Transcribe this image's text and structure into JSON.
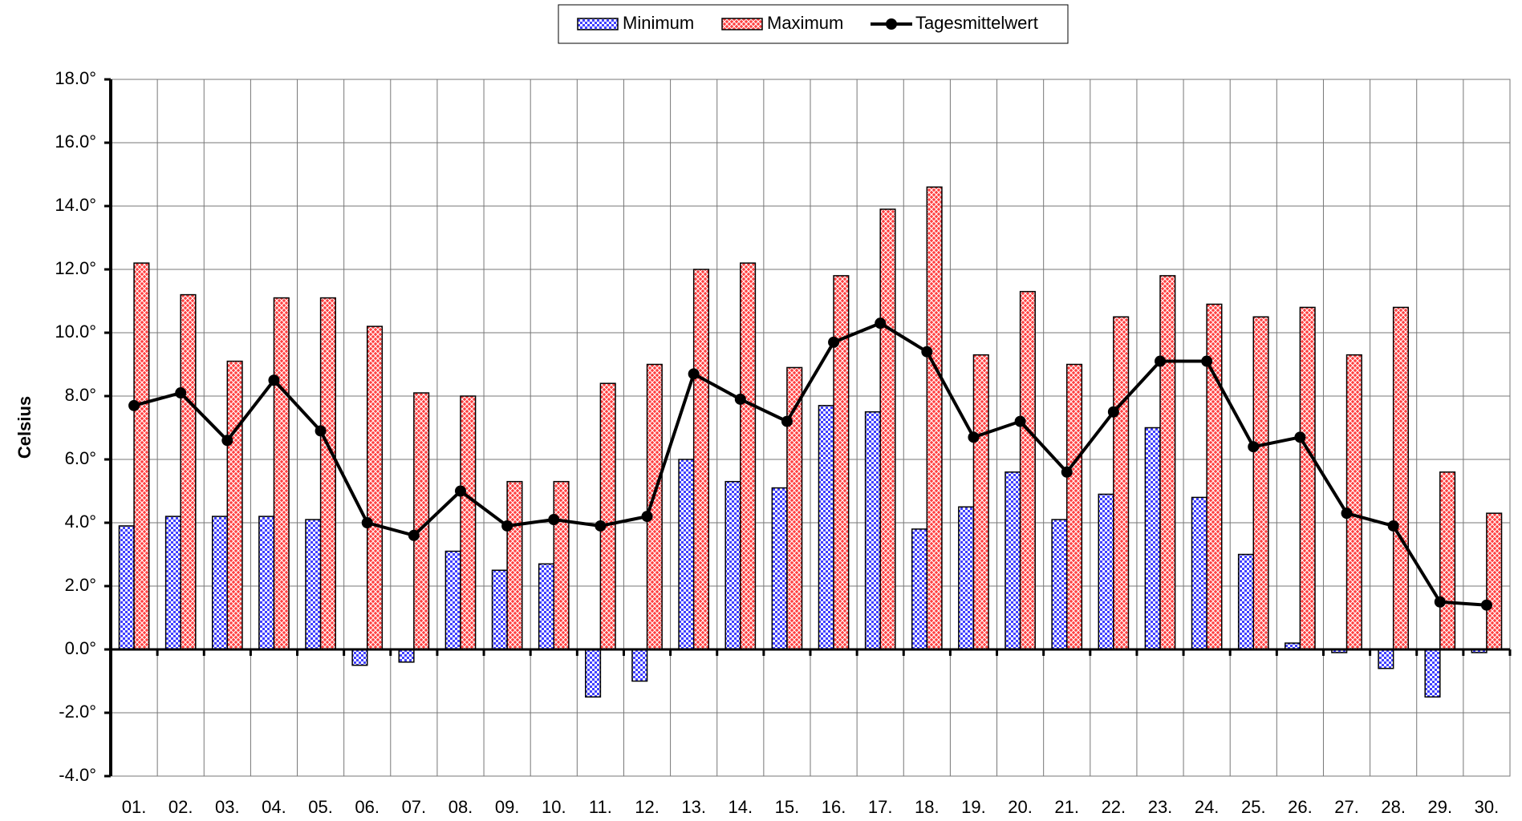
{
  "chart_data": {
    "type": "bar-line",
    "y_label": "Celsius",
    "categories": [
      "01.",
      "02.",
      "03.",
      "04.",
      "05.",
      "06.",
      "07.",
      "08.",
      "09.",
      "10.",
      "11.",
      "12.",
      "13.",
      "14.",
      "15.",
      "16.",
      "17.",
      "18.",
      "19.",
      "20.",
      "21.",
      "22.",
      "23.",
      "24.",
      "25.",
      "26.",
      "27.",
      "28.",
      "29.",
      "30."
    ],
    "series": [
      {
        "name": "Minimum",
        "color": "#4040ff",
        "kind": "bar",
        "values": [
          3.9,
          4.2,
          4.2,
          4.2,
          4.1,
          -0.5,
          -0.4,
          3.1,
          2.5,
          2.7,
          -1.5,
          -1.0,
          6.0,
          5.3,
          5.1,
          7.7,
          7.5,
          3.8,
          4.5,
          5.6,
          4.1,
          4.9,
          7.0,
          4.8,
          3.0,
          0.2,
          -0.1,
          -0.6,
          -1.5,
          -0.1
        ]
      },
      {
        "name": "Maximum",
        "color": "#ff4040",
        "kind": "bar",
        "values": [
          12.2,
          11.2,
          9.1,
          11.1,
          11.1,
          10.2,
          8.1,
          8.0,
          5.3,
          5.3,
          8.4,
          9.0,
          12.0,
          12.2,
          8.9,
          11.8,
          13.9,
          14.6,
          9.3,
          11.3,
          9.0,
          10.5,
          11.8,
          10.9,
          10.5,
          10.8,
          9.3,
          10.8,
          5.6,
          4.3
        ]
      },
      {
        "name": "Tagesmittelwert",
        "color": "#000000",
        "kind": "line",
        "values": [
          7.7,
          8.1,
          6.6,
          8.5,
          6.9,
          4.0,
          3.6,
          5.0,
          3.9,
          4.1,
          3.9,
          4.2,
          8.7,
          7.9,
          7.2,
          9.7,
          10.3,
          9.4,
          6.7,
          7.2,
          5.6,
          7.5,
          9.1,
          9.1,
          6.4,
          6.7,
          4.3,
          3.9,
          1.5,
          1.4
        ]
      }
    ],
    "ylim": [
      -4,
      18
    ],
    "yticks": [
      {
        "value": -4,
        "label": "-4.0°"
      },
      {
        "value": -2,
        "label": "-2.0°"
      },
      {
        "value": 0,
        "label": "0.0°"
      },
      {
        "value": 2,
        "label": "2.0°"
      },
      {
        "value": 4,
        "label": "4.0°"
      },
      {
        "value": 6,
        "label": "6.0°"
      },
      {
        "value": 8,
        "label": "8.0°"
      },
      {
        "value": 10,
        "label": "10.0°"
      },
      {
        "value": 12,
        "label": "12.0°"
      },
      {
        "value": 14,
        "label": "14.0°"
      },
      {
        "value": 16,
        "label": "16.0°"
      },
      {
        "value": 18,
        "label": "18.0°"
      }
    ],
    "grid": true,
    "legend": "top"
  }
}
